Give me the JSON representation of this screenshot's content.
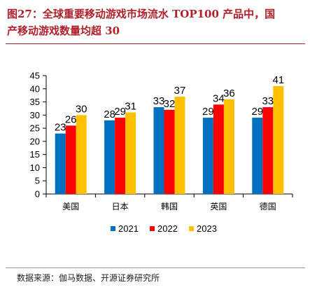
{
  "header": {
    "title_line1": "图27：全球重要移动游戏市场流水 TOP100 产品中，国",
    "title_line2": "产移动游戏数量均超 30"
  },
  "footer": {
    "source": "数据来源：伽马数据、开源证券研究所"
  },
  "chart_data": {
    "type": "bar",
    "categories": [
      "美国",
      "日本",
      "韩国",
      "英国",
      "德国"
    ],
    "series": [
      {
        "name": "2021",
        "values": [
          23,
          28,
          33,
          29,
          29
        ],
        "color": "#0070c0"
      },
      {
        "name": "2022",
        "values": [
          26,
          29,
          32,
          34,
          33
        ],
        "color": "#ff0000"
      },
      {
        "name": "2023",
        "values": [
          30,
          31,
          37,
          36,
          41
        ],
        "color": "#ffc000"
      }
    ],
    "ylim": [
      0,
      45
    ],
    "yticks": [
      0,
      5,
      10,
      15,
      20,
      25,
      30,
      35,
      40,
      45
    ],
    "grid": false,
    "legend_position": "bottom"
  }
}
